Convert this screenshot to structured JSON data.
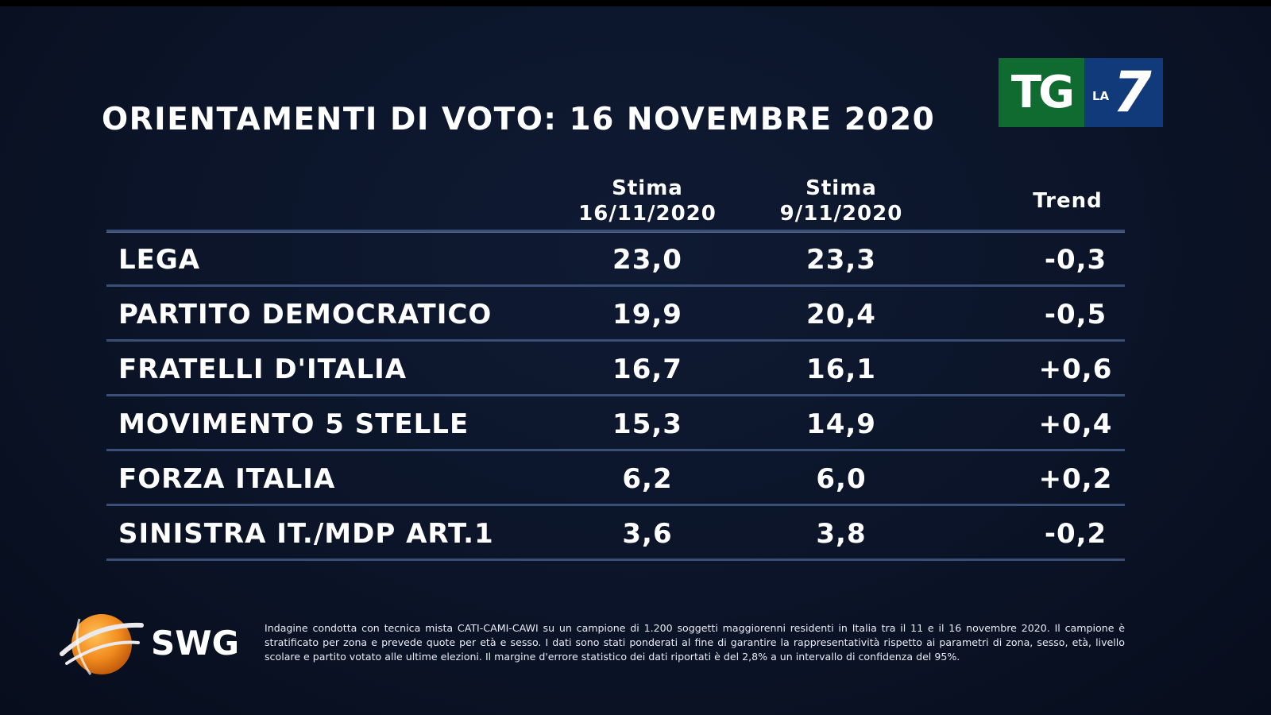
{
  "title": "ORIENTAMENTI DI VOTO: 16 NOVEMBRE 2020",
  "logo": {
    "tg": "TG",
    "la": "LA",
    "seven": "7"
  },
  "table": {
    "headers": {
      "col1_line1": "Stima",
      "col1_line2": "16/11/2020",
      "col2_line1": "Stima",
      "col2_line2": "9/11/2020",
      "col3": "Trend"
    },
    "rows": [
      {
        "party": "LEGA",
        "v1": "23,0",
        "v2": "23,3",
        "trend": "-0,3"
      },
      {
        "party": "PARTITO DEMOCRATICO",
        "v1": "19,9",
        "v2": "20,4",
        "trend": "-0,5"
      },
      {
        "party": "FRATELLI D'ITALIA",
        "v1": "16,7",
        "v2": "16,1",
        "trend": "+0,6"
      },
      {
        "party": "MOVIMENTO 5 STELLE",
        "v1": "15,3",
        "v2": "14,9",
        "trend": "+0,4"
      },
      {
        "party": "FORZA ITALIA",
        "v1": "6,2",
        "v2": "6,0",
        "trend": "+0,2"
      },
      {
        "party": "SINISTRA IT./MDP ART.1",
        "v1": "3,6",
        "v2": "3,8",
        "trend": "-0,2"
      }
    ]
  },
  "swg": {
    "name": "SWG",
    "icon": "globe-icon"
  },
  "footnote": "Indagine condotta con tecnica mista CATI-CAMI-CAWI su un campione di 1.200 soggetti maggiorenni residenti in Italia tra il 11 e il 16 novembre 2020. Il campione è stratificato per zona e prevede quote per età e sesso. I dati sono stati ponderati al fine di garantire la rappresentatività rispetto ai parametri di zona, sesso, età, livello scolare e partito votato alle ultime elezioni. Il margine d'errore statistico dei dati riportati è del 2,8% a un intervallo di confidenza del 95%.",
  "colors": {
    "background": "#0b1428",
    "rule": "#3a4f78",
    "tg_green": "#0f6b2f",
    "la7_blue": "#103a7a",
    "swg_orange": "#f28c1e"
  }
}
